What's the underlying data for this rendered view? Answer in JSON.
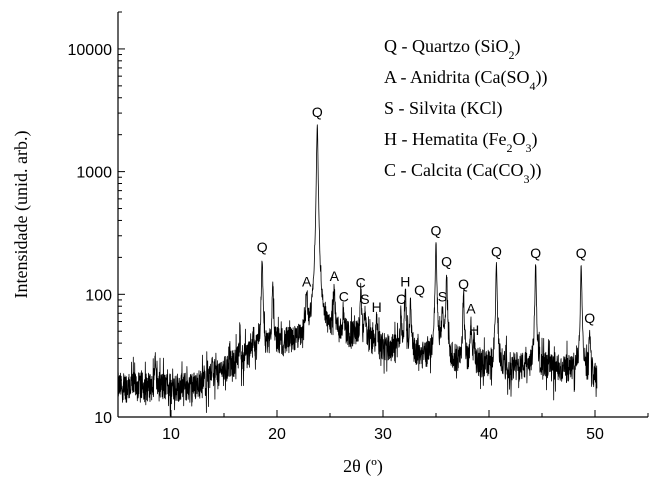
{
  "chart_data": {
    "type": "line",
    "title": "",
    "xlabel": "2θ (º)",
    "ylabel": "Intensidade (unid. arb.)",
    "xlim": [
      5,
      55
    ],
    "ylim": [
      10,
      20000
    ],
    "yscale": "log",
    "grid": false,
    "x_ticks": [
      10,
      20,
      30,
      40,
      50
    ],
    "y_ticks": [
      10,
      100,
      1000,
      10000
    ],
    "x_tick_labels": [
      "10",
      "20",
      "30",
      "40",
      "50"
    ],
    "y_tick_labels": [
      "10",
      "100",
      "1000",
      "10000"
    ],
    "background_profile": {
      "x": [
        5,
        8,
        12,
        14,
        16,
        18,
        20,
        22,
        24,
        25,
        26,
        27,
        28,
        29,
        30,
        31,
        32,
        33,
        34,
        35,
        36,
        38,
        40,
        42,
        44,
        46,
        48,
        49,
        50
      ],
      "y": [
        18,
        18,
        18,
        21,
        28,
        35,
        40,
        42,
        46,
        50,
        48,
        47,
        45,
        41,
        38,
        36,
        35,
        34,
        32,
        32,
        30,
        28,
        27,
        26,
        26,
        25,
        25,
        24,
        22
      ]
    },
    "noise_spikes": [
      {
        "x": 8.5,
        "y": 32
      },
      {
        "x": 13.9,
        "y": 33
      },
      {
        "x": 16.5,
        "y": 45
      },
      {
        "x": 17.8,
        "y": 52
      }
    ],
    "peaks": [
      {
        "x": 18.6,
        "y": 190,
        "label": "Q"
      },
      {
        "x": 19.6,
        "y": 115,
        "label": ""
      },
      {
        "x": 22.8,
        "y": 100,
        "label": "A"
      },
      {
        "x": 23.8,
        "y": 2400,
        "label": "Q"
      },
      {
        "x": 25.4,
        "y": 110,
        "label": "A"
      },
      {
        "x": 26.3,
        "y": 75,
        "label": "C"
      },
      {
        "x": 27.9,
        "y": 98,
        "label": "C"
      },
      {
        "x": 28.3,
        "y": 72,
        "label": "S"
      },
      {
        "x": 29.4,
        "y": 62,
        "label": "H"
      },
      {
        "x": 31.7,
        "y": 72,
        "label": "C"
      },
      {
        "x": 32.1,
        "y": 100,
        "label": "H"
      },
      {
        "x": 32.6,
        "y": 85,
        "label": "Q"
      },
      {
        "x": 35.0,
        "y": 260,
        "label": "Q"
      },
      {
        "x": 35.6,
        "y": 75,
        "label": "S"
      },
      {
        "x": 36.0,
        "y": 145,
        "label": "Q"
      },
      {
        "x": 37.6,
        "y": 95,
        "label": "Q"
      },
      {
        "x": 38.3,
        "y": 60,
        "label": "A"
      },
      {
        "x": 38.6,
        "y": 40,
        "label": "H"
      },
      {
        "x": 40.7,
        "y": 175,
        "label": "Q"
      },
      {
        "x": 44.4,
        "y": 170,
        "label": "Q"
      },
      {
        "x": 48.7,
        "y": 170,
        "label": "Q"
      },
      {
        "x": 49.5,
        "y": 50,
        "label": "Q"
      }
    ],
    "legend_position": "top-right",
    "legend": [
      {
        "key": "Q",
        "name": "Quartzo",
        "formula": [
          {
            "t": "SiO"
          },
          {
            "t": "2",
            "sub": true
          }
        ]
      },
      {
        "key": "A",
        "name": "Anidrita",
        "formula": [
          {
            "t": "Ca(SO"
          },
          {
            "t": "4",
            "sub": true
          },
          {
            "t": ")"
          }
        ]
      },
      {
        "key": "S",
        "name": "Silvita",
        "formula": [
          {
            "t": "KCl"
          }
        ]
      },
      {
        "key": "H",
        "name": "Hematita",
        "formula": [
          {
            "t": "Fe"
          },
          {
            "t": "2",
            "sub": true
          },
          {
            "t": "O"
          },
          {
            "t": "3",
            "sub": true
          }
        ]
      },
      {
        "key": "C",
        "name": "Calcita",
        "formula": [
          {
            "t": "Ca(CO"
          },
          {
            "t": "3",
            "sub": true
          },
          {
            "t": ")"
          }
        ]
      }
    ],
    "line_color": "#000000"
  }
}
